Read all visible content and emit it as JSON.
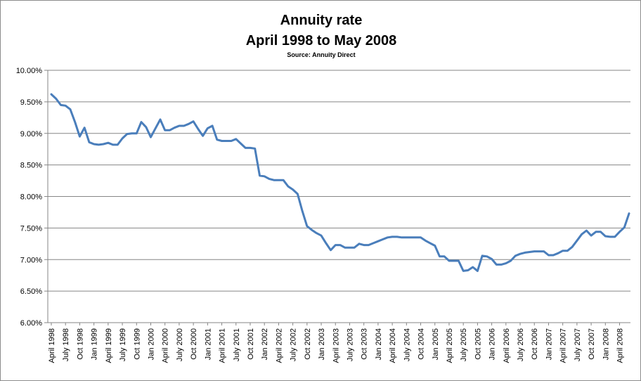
{
  "chart_data": {
    "type": "line",
    "title": "Annuity rate",
    "subtitle": "April 1998 to May 2008",
    "source": "Source: Annuity Direct",
    "xlabel": "",
    "ylabel": "",
    "ylim": [
      6.0,
      10.0
    ],
    "grid": true,
    "legend": "none",
    "color": "#4a7ebb",
    "y_ticks": [
      "6.00%",
      "6.50%",
      "7.00%",
      "7.50%",
      "8.00%",
      "8.50%",
      "9.00%",
      "9.50%",
      "10.00%"
    ],
    "x_tick_labels": [
      "April 1998",
      "July 1998",
      "Oct 1998",
      "Jan 1999",
      "April 1999",
      "July 1999",
      "Oct 1999",
      "Jan 2000",
      "April 2000",
      "July 2000",
      "Oct 2000",
      "Jan 2001",
      "April 2001",
      "July 2001",
      "Oct 2001",
      "Jan 2002",
      "April 2002",
      "July 2002",
      "Oct 2002",
      "Jan 2003",
      "April 2003",
      "July 2003",
      "Oct 2003",
      "Jan 2004",
      "April 2004",
      "July 2004",
      "Oct 2004",
      "Jan 2005",
      "April 2005",
      "July 2005",
      "Oct 2005",
      "Jan 2006",
      "April 2006",
      "July 2006",
      "Oct 2006",
      "Jan 2007",
      "April 2007",
      "July 2007",
      "Oct 2007",
      "Jan 2008",
      "April 2008"
    ],
    "series": [
      {
        "values": [
          9.62,
          9.55,
          9.45,
          9.44,
          9.38,
          9.18,
          8.95,
          9.09,
          8.86,
          8.83,
          8.82,
          8.83,
          8.85,
          8.82,
          8.82,
          8.92,
          8.99,
          9.0,
          9.0,
          9.18,
          9.1,
          8.94,
          9.08,
          9.22,
          9.05,
          9.05,
          9.09,
          9.12,
          9.12,
          9.15,
          9.19,
          9.07,
          8.96,
          9.08,
          9.12,
          8.9,
          8.88,
          8.88,
          8.88,
          8.91,
          8.84,
          8.77,
          8.77,
          8.76,
          8.33,
          8.32,
          8.28,
          8.26,
          8.26,
          8.26,
          8.16,
          8.11,
          8.04,
          7.77,
          7.53,
          7.47,
          7.42,
          7.38,
          7.26,
          7.15,
          7.23,
          7.23,
          7.19,
          7.19,
          7.19,
          7.25,
          7.23,
          7.23,
          7.26,
          7.29,
          7.32,
          7.35,
          7.36,
          7.36,
          7.35,
          7.35,
          7.35,
          7.35,
          7.35,
          7.3,
          7.26,
          7.22,
          7.05,
          7.05,
          6.98,
          6.98,
          6.98,
          6.82,
          6.83,
          6.88,
          6.82,
          7.06,
          7.05,
          7.01,
          6.92,
          6.92,
          6.94,
          6.98,
          7.06,
          7.09,
          7.11,
          7.12,
          7.13,
          7.13,
          7.13,
          7.07,
          7.07,
          7.1,
          7.14,
          7.14,
          7.2,
          7.3,
          7.4,
          7.46,
          7.38,
          7.44,
          7.44,
          7.37,
          7.36,
          7.36,
          7.44,
          7.51,
          7.73
        ]
      }
    ]
  }
}
